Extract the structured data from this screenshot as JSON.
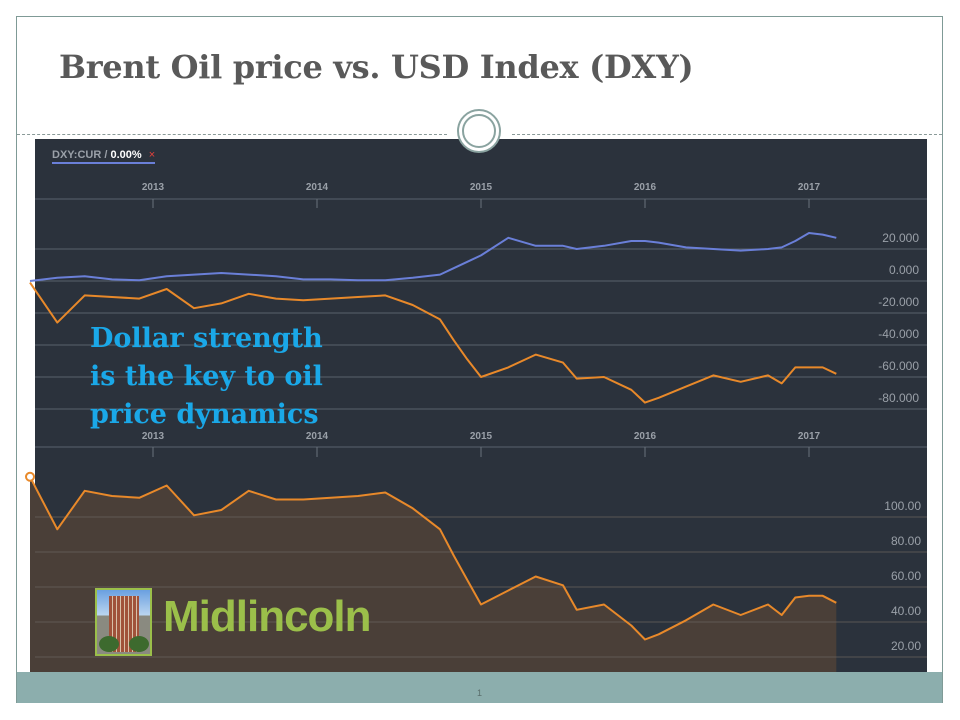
{
  "slide": {
    "title": "Brent Oil price vs. USD Index (DXY)",
    "page_number": "1",
    "annotation": [
      "Dollar strength",
      "is the key to oil",
      "price dynamics"
    ],
    "logo_text": "Midlincoln"
  },
  "legend": {
    "symbol": "DXY:CUR /",
    "change": "0.00%",
    "remove_icon": "close-icon",
    "close_glyph": "×"
  },
  "colors": {
    "background": "#2b323c",
    "dxy": "#6a7fd8",
    "brent": "#e8892a",
    "brent_fill": "#4a3f38",
    "annotation": "#1aa8e8",
    "logo": "#9bbf4a",
    "footer": "#8caead"
  },
  "chart_data": [
    {
      "type": "line",
      "title": "",
      "x_tick_labels": [
        "2013",
        "2014",
        "2015",
        "2016",
        "2017"
      ],
      "y_tick_labels": [
        "20.000",
        "0.000",
        "-20.000",
        "-40.000",
        "-60.000",
        "-80.000"
      ],
      "ylim": [
        -85,
        35
      ],
      "grid": true,
      "x": [
        "2012-04",
        "2012-06",
        "2012-08",
        "2012-10",
        "2012-12",
        "2013-02",
        "2013-04",
        "2013-06",
        "2013-08",
        "2013-10",
        "2013-12",
        "2014-02",
        "2014-04",
        "2014-06",
        "2014-08",
        "2014-10",
        "2014-11",
        "2014-12",
        "2015-01",
        "2015-03",
        "2015-05",
        "2015-07",
        "2015-08",
        "2015-10",
        "2015-12",
        "2016-01",
        "2016-02",
        "2016-04",
        "2016-06",
        "2016-08",
        "2016-10",
        "2016-11",
        "2016-12",
        "2017-01",
        "2017-02",
        "2017-03"
      ],
      "series": [
        {
          "name": "DXY:CUR",
          "values": [
            0,
            2,
            3,
            1,
            0.5,
            3,
            4,
            5,
            4,
            3,
            1,
            1,
            0.5,
            0.5,
            2,
            4,
            8,
            12,
            16,
            27,
            22,
            22,
            20,
            22,
            25,
            25,
            24,
            21,
            20,
            19,
            20,
            21,
            25,
            30,
            29,
            27
          ]
        },
        {
          "values": [
            -1,
            -26,
            -9,
            -10,
            -11,
            -5,
            -17,
            -14,
            -8,
            -11,
            -12,
            -11,
            -10,
            -9,
            -15,
            -24,
            -37,
            -49,
            -60,
            -54,
            -46,
            -51,
            -61,
            -60,
            -68,
            -76,
            -73,
            -66,
            -59,
            -63,
            -59,
            -64,
            -54,
            -54,
            -54,
            -58
          ]
        }
      ]
    },
    {
      "type": "area",
      "title": "",
      "x_tick_labels": [
        "2013",
        "2014",
        "2015",
        "2016",
        "2017"
      ],
      "y_tick_labels": [
        "100.00",
        "80.00",
        "60.00",
        "40.00",
        "20.00"
      ],
      "ylim": [
        12,
        125
      ],
      "grid": true,
      "x": [
        "2012-04",
        "2012-06",
        "2012-08",
        "2012-10",
        "2012-12",
        "2013-02",
        "2013-04",
        "2013-06",
        "2013-08",
        "2013-10",
        "2013-12",
        "2014-02",
        "2014-04",
        "2014-06",
        "2014-08",
        "2014-10",
        "2014-11",
        "2014-12",
        "2015-01",
        "2015-03",
        "2015-05",
        "2015-07",
        "2015-08",
        "2015-10",
        "2015-12",
        "2016-01",
        "2016-02",
        "2016-04",
        "2016-06",
        "2016-08",
        "2016-10",
        "2016-11",
        "2016-12",
        "2017-01",
        "2017-02",
        "2017-03"
      ],
      "series": [
        {
          "values": [
            123,
            93,
            115,
            112,
            111,
            118,
            101,
            104,
            115,
            110,
            110,
            111,
            112,
            114,
            105,
            93,
            78,
            64,
            50,
            58,
            66,
            61,
            47,
            50,
            38,
            30,
            33,
            41,
            50,
            44,
            50,
            44,
            54,
            55,
            55,
            51
          ]
        }
      ]
    }
  ]
}
